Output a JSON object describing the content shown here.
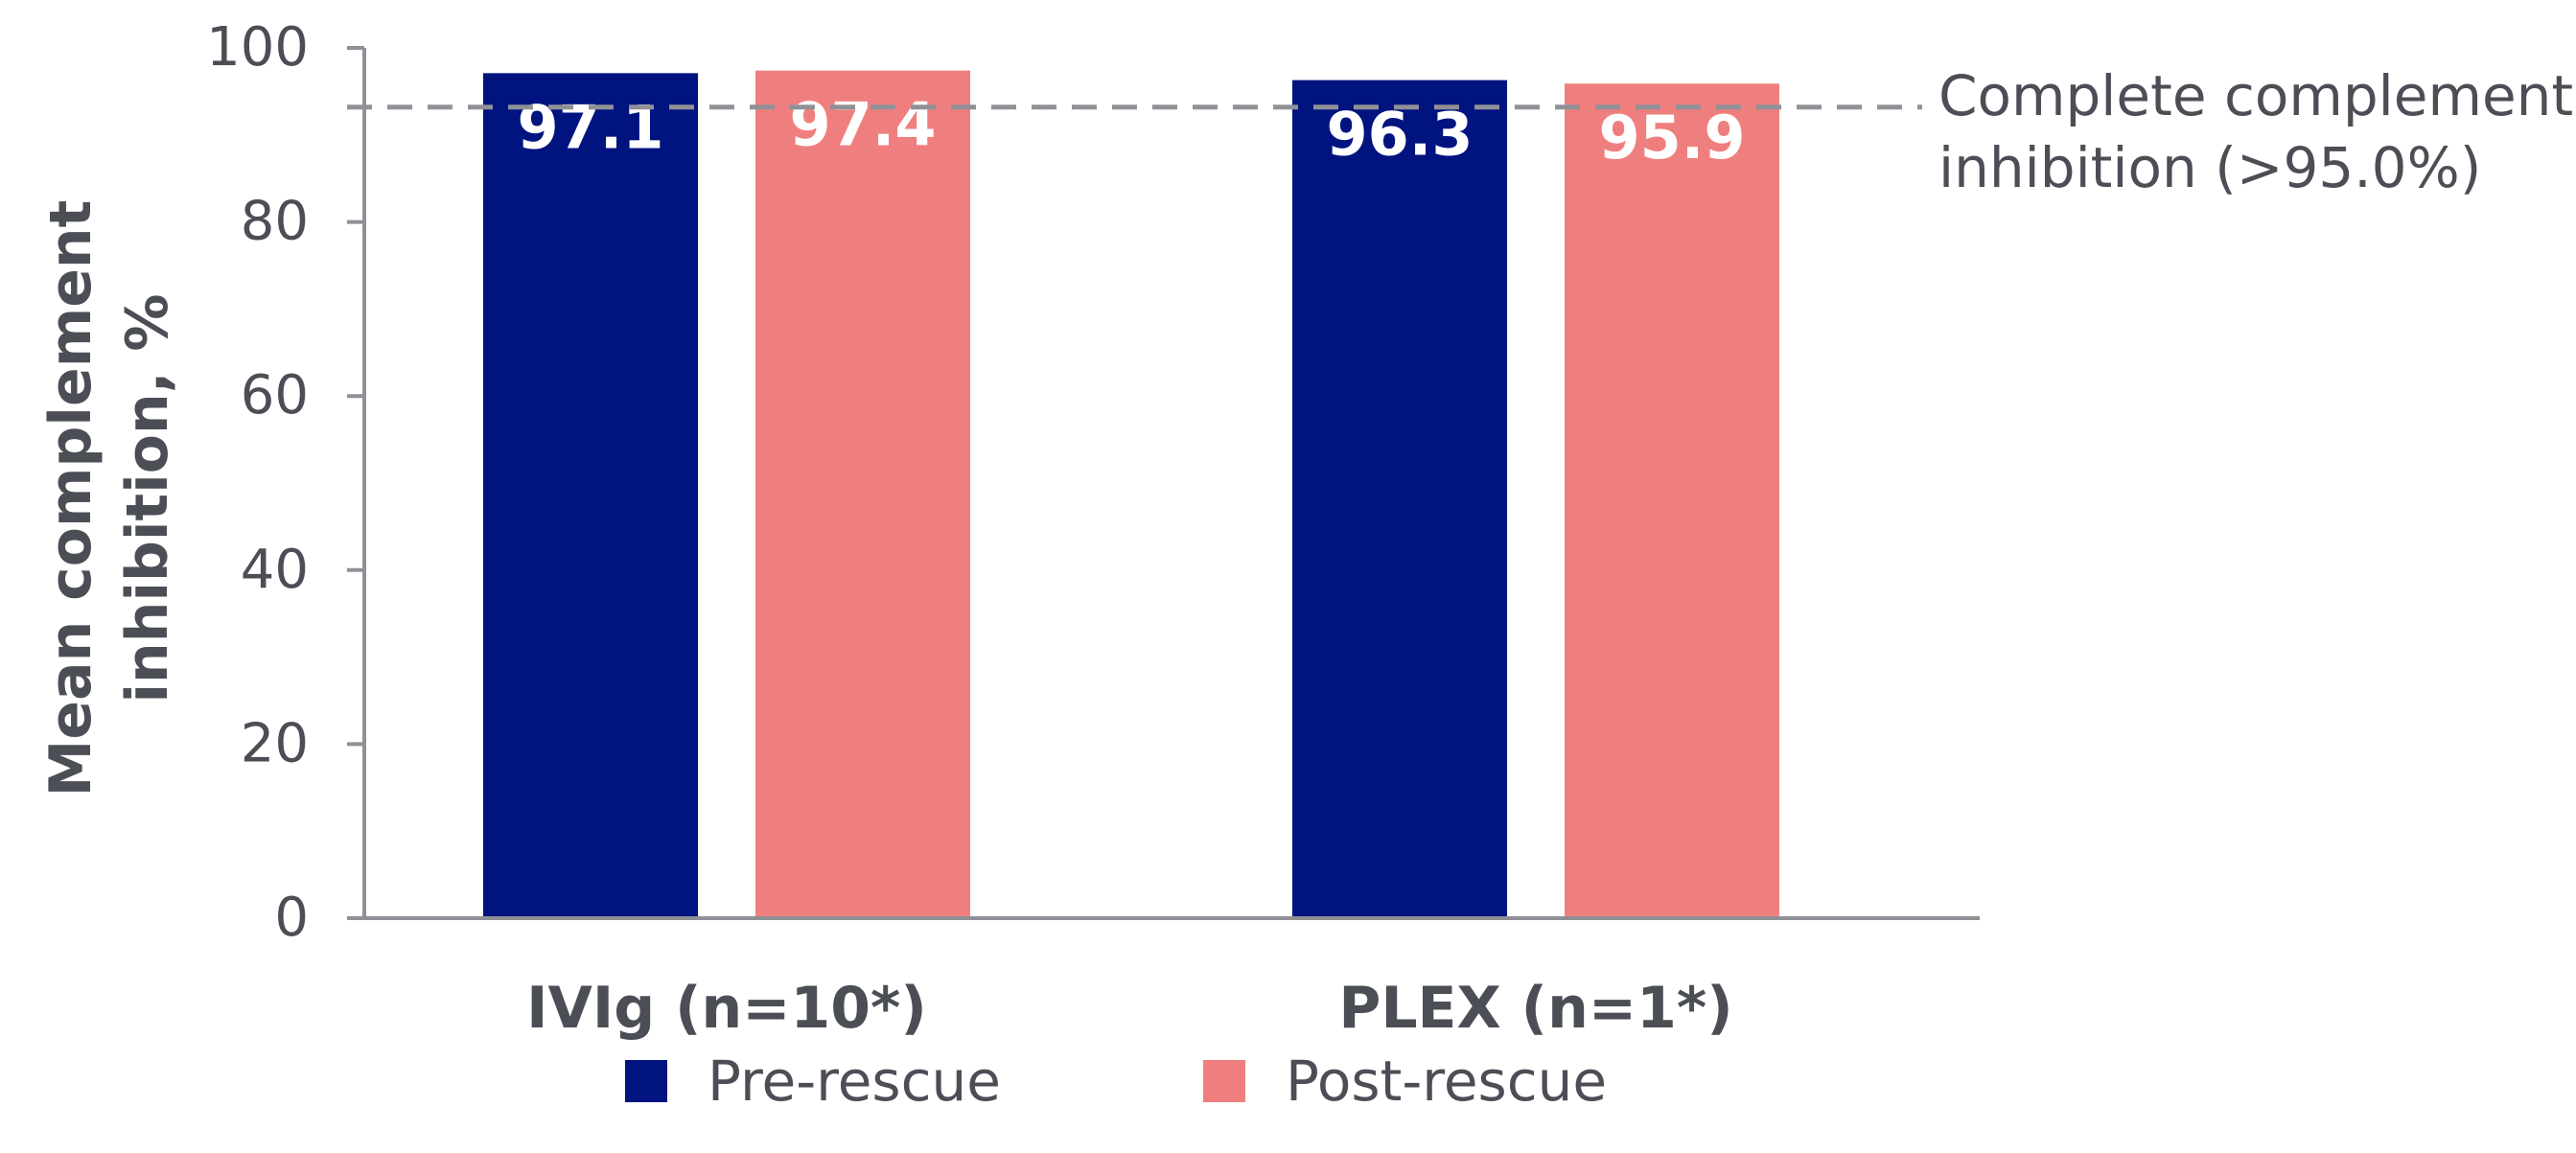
{
  "chart_data": {
    "type": "bar",
    "ylabel_line1": "Mean complement",
    "ylabel_line2": "inhibition, %",
    "ylim": [
      0,
      100
    ],
    "yticks": [
      0,
      20,
      40,
      60,
      80,
      100
    ],
    "grid": false,
    "categories": [
      "IVIg (n=10*)",
      "PLEX (n=1*)"
    ],
    "series": [
      {
        "name": "Pre-rescue",
        "color": "#00137f",
        "values": [
          97.1,
          96.3
        ],
        "labels": [
          "97.1",
          "96.3"
        ]
      },
      {
        "name": "Post-rescue",
        "color": "#ef7f7e",
        "values": [
          97.4,
          95.9
        ],
        "labels": [
          "97.4",
          "95.9"
        ]
      }
    ],
    "reference_line": {
      "value": 93.2,
      "label_line1": "Complete complement",
      "label_line2": "inhibition (>95.0%)",
      "color": "#8f9197",
      "style": "dashed"
    },
    "legend_position": "bottom",
    "text_color": "#4c4e56",
    "axis_color": "#8f9197"
  }
}
